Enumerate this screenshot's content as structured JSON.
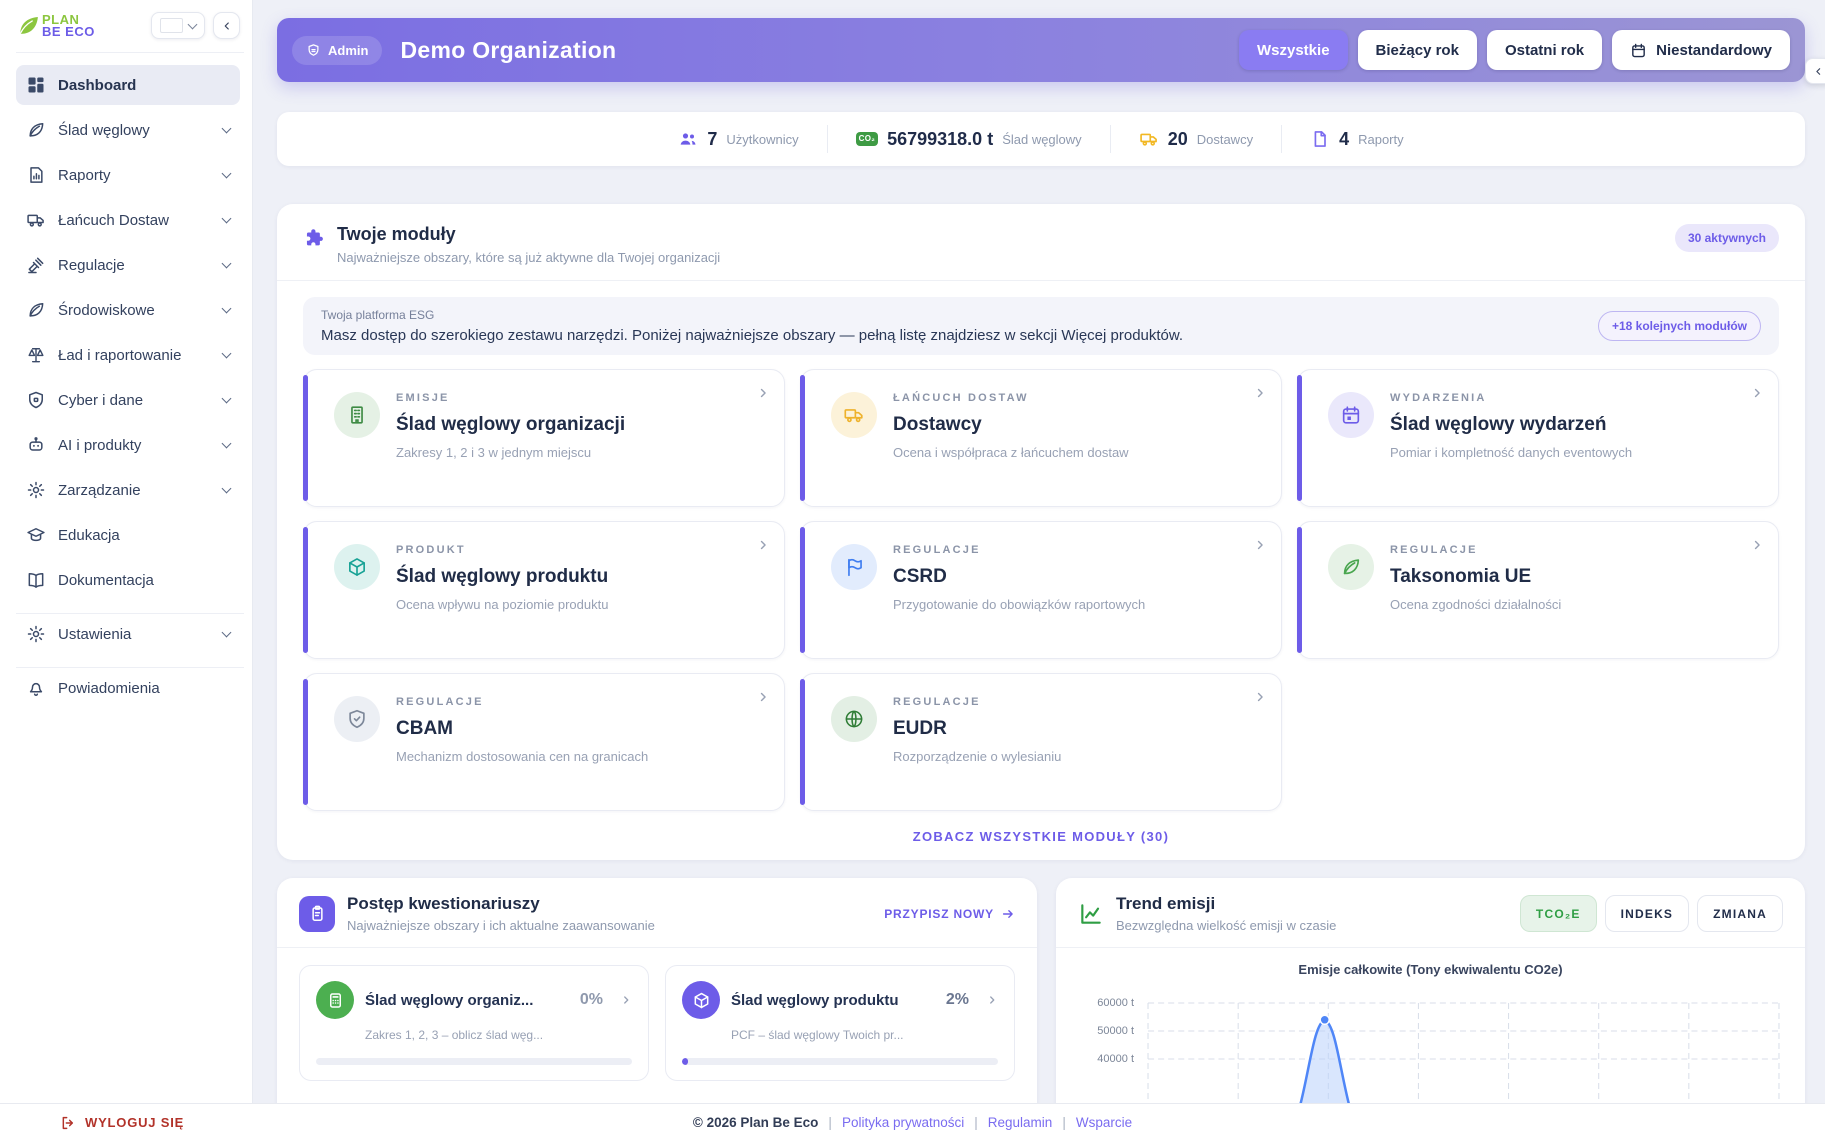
{
  "brand": {
    "line1": "PLAN",
    "line2": "BE ECO",
    "leaf_color": "#8cc63f",
    "text_color": "#6c5ce7"
  },
  "language": {
    "flag_icon": "poland-flag-icon"
  },
  "sidebar": {
    "items": [
      {
        "label": "Dashboard",
        "icon": "dashboard-icon",
        "active": true,
        "chevron": false
      },
      {
        "label": "Ślad węglowy",
        "icon": "leaf-icon",
        "chevron": true
      },
      {
        "label": "Raporty",
        "icon": "report-icon",
        "chevron": true
      },
      {
        "label": "Łańcuch Dostaw",
        "icon": "truck-icon",
        "chevron": true
      },
      {
        "label": "Regulacje",
        "icon": "gavel-icon",
        "chevron": true
      },
      {
        "label": "Środowiskowe",
        "icon": "leaf-icon",
        "chevron": true
      },
      {
        "label": "Ład i raportowanie",
        "icon": "scales-icon",
        "chevron": true
      },
      {
        "label": "Cyber i dane",
        "icon": "shield-icon",
        "chevron": true
      },
      {
        "label": "AI i produkty",
        "icon": "robot-icon",
        "chevron": true
      },
      {
        "label": "Zarządzanie",
        "icon": "gear-icon",
        "chevron": true
      },
      {
        "label": "Edukacja",
        "icon": "graduation-icon",
        "chevron": false
      },
      {
        "label": "Dokumentacja",
        "icon": "book-icon",
        "chevron": false
      }
    ],
    "settings": {
      "label": "Ustawienia",
      "icon": "gear-icon",
      "chevron": true
    },
    "notifications": {
      "label": "Powiadomienia",
      "icon": "bell-icon"
    }
  },
  "header": {
    "admin_badge": "Admin",
    "title": "Demo Organization",
    "accent_color": "#7b6ee2",
    "filters": [
      {
        "label": "Wszystkie",
        "active": true
      },
      {
        "label": "Bieżący rok",
        "active": false
      },
      {
        "label": "Ostatni rok",
        "active": false
      },
      {
        "label": "Niestandardowy",
        "active": false,
        "icon": "calendar-icon"
      }
    ]
  },
  "stats": [
    {
      "icon": "users-icon",
      "icon_color": "#6d5ce8",
      "value": "7",
      "label": "Użytkownicy"
    },
    {
      "icon": "co2-icon",
      "icon_text": "CO₂",
      "icon_color": "#3e9b44",
      "value": "56799318.0 t",
      "label": "Ślad węglowy"
    },
    {
      "icon": "truck-icon",
      "icon_color": "#f2b824",
      "value": "20",
      "label": "Dostawcy"
    },
    {
      "icon": "report-icon",
      "icon_color": "#7b6cf0",
      "value": "4",
      "label": "Raporty"
    }
  ],
  "modules": {
    "title": "Twoje moduły",
    "subtitle": "Najważniejsze obszary, które są już aktywne dla Twojej organizacji",
    "active_badge": "30 aktywnych",
    "banner": {
      "label": "Twoja platforma ESG",
      "text": "Masz dostęp do szerokiego zestawu narzędzi. Poniżej najważniejsze obszary — pełną listę znajdziesz w sekcji Więcej produktów.",
      "badge": "+18 kolejnych modułów"
    },
    "cards": [
      {
        "category": "EMISJE",
        "title": "Ślad węglowy organizacji",
        "subtitle": "Zakresy 1, 2 i 3 w jednym miejscu",
        "icon": "building-icon",
        "icon_color": "#3e8b44"
      },
      {
        "category": "ŁAŃCUCH DOSTAW",
        "title": "Dostawcy",
        "subtitle": "Ocena i współpraca z łańcuchem dostaw",
        "icon": "truck-icon",
        "icon_color": "#eeb22c"
      },
      {
        "category": "WYDARZENIA",
        "title": "Ślad węglowy wydarzeń",
        "subtitle": "Pomiar i kompletność danych eventowych",
        "icon": "calendar-icon",
        "icon_color": "#6d5ce8"
      },
      {
        "category": "PRODUKT",
        "title": "Ślad węglowy produktu",
        "subtitle": "Ocena wpływu na poziomie produktu",
        "icon": "cube-icon",
        "icon_color": "#17a295"
      },
      {
        "category": "REGULACJE",
        "title": "CSRD",
        "subtitle": "Przygotowanie do obowiązków raportowych",
        "icon": "flag-icon",
        "icon_color": "#3f7df0"
      },
      {
        "category": "REGULACJE",
        "title": "Taksonomia UE",
        "subtitle": "Ocena zgodności działalności",
        "icon": "leaf-icon",
        "icon_color": "#49a64f"
      },
      {
        "category": "REGULACJE",
        "title": "CBAM",
        "subtitle": "Mechanizm dostosowania cen na granicach",
        "icon": "shield-check-icon",
        "icon_color": "#7c8799"
      },
      {
        "category": "REGULACJE",
        "title": "EUDR",
        "subtitle": "Rozporządzenie o wylesianiu",
        "icon": "globe-icon",
        "icon_color": "#2f7d36"
      }
    ],
    "see_all": "ZOBACZ WSZYSTKIE MODUŁY (30)"
  },
  "questionnaires": {
    "title": "Postęp kwestionariuszy",
    "subtitle": "Najważniejsze obszary i ich aktualne zaawansowanie",
    "assign_new": "PRZYPISZ NOWY",
    "cards": [
      {
        "title": "Ślad węglowy organiz...",
        "percent": "0%",
        "progress": 0,
        "subtitle": "Zakres 1, 2, 3 – oblicz ślad węg...",
        "icon": "calculator-icon",
        "icon_color": "#4caf50"
      },
      {
        "title": "Ślad węglowy produktu",
        "percent": "2%",
        "progress": 2,
        "subtitle": "PCF – ślad węglowy Twoich pr...",
        "icon": "cube-icon",
        "icon_color": "#6d5ce8"
      }
    ]
  },
  "trend": {
    "title": "Trend emisji",
    "subtitle": "Bezwzględna wielkość emisji w czasie",
    "buttons": [
      {
        "label": "TCO₂E",
        "active": true
      },
      {
        "label": "INDEKS",
        "active": false
      },
      {
        "label": "ZMIANA",
        "active": false
      }
    ]
  },
  "chart_data": {
    "type": "area",
    "title": "Emisje całkowite (Tony ekwiwalentu CO2e)",
    "ytick_labels": [
      "60000 t",
      "50000 t",
      "40000 t"
    ],
    "ytick_values": [
      60000,
      50000,
      40000
    ],
    "visible_ylim": [
      38000,
      62000
    ],
    "series": [
      {
        "name": "Emisje całkowite",
        "shape": "spike",
        "peak_value": 54000,
        "peak_x_fraction": 0.28
      }
    ],
    "grid": {
      "style": "dashed",
      "vertical_columns": 8,
      "on": true
    },
    "line_color": "#4f86f7",
    "fill_color": "#b9d2fb"
  },
  "footer": {
    "logout_label": "WYLOGUJ SIĘ",
    "copyright": "© 2026 Plan Be Eco",
    "separator": "|",
    "links": [
      "Polityka prywatności",
      "Regulamin",
      "Wsparcie"
    ]
  }
}
